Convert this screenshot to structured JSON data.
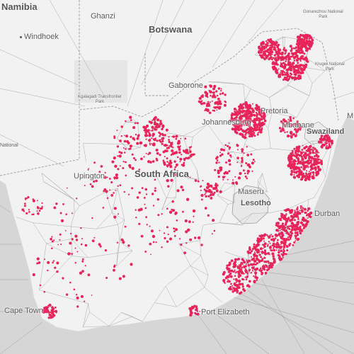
{
  "map": {
    "countries": {
      "namibia": "Namibia",
      "botswana": "Botswana",
      "south_africa": "South Africa",
      "lesotho": "Lesotho",
      "swaziland": "Swaziland"
    },
    "cities": {
      "windhoek": "Windhoek",
      "ghanzi": "Ghanzi",
      "gaborone": "Gaborone",
      "johannesburg": "Johannesburg",
      "pretoria": "Pretoria",
      "mbabane": "Mbabane",
      "upington": "Upington",
      "maseru": "Maseru",
      "durban": "Durban",
      "cape_town": "Cape Town",
      "port_elizabeth": "Port Elizabeth"
    },
    "parks": {
      "kgalagadi_line1": "Kgalagadi Transfrontier",
      "kgalagadi_line2": "Park",
      "gonarezhou_line1": "Gonarezhou National",
      "gonarezhou_line2": "Park",
      "kruger_line1": "Kruger National",
      "kruger_line2": "Park"
    },
    "edge_labels": {
      "national": "National",
      "m_edge": "M"
    },
    "colors": {
      "land": "#f2f2f2",
      "water": "#d6d6d6",
      "points": "#e8245a",
      "lines": "#8c8c8c"
    }
  }
}
